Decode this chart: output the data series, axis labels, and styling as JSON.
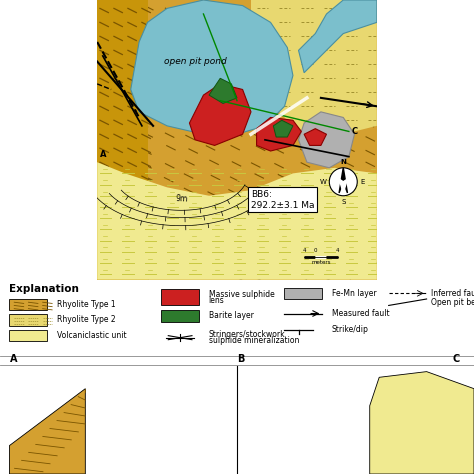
{
  "bg_white": "#ffffff",
  "pond_color": "#7bbfcc",
  "rhyolite1_color": "#d4a030",
  "rhyolite2_color": "#e8d870",
  "volc_color": "#f0ea90",
  "massive_sulphide_color": "#cc2020",
  "barite_color": "#2d7a2d",
  "fe_mn_color": "#b0b0b0",
  "annotation_text": "BB6:\n292.2±3.1 Ma",
  "open_pit_text": "open pit pond",
  "scale_text": "4   0    4",
  "scale_sub": "meters",
  "title": "Explanation"
}
